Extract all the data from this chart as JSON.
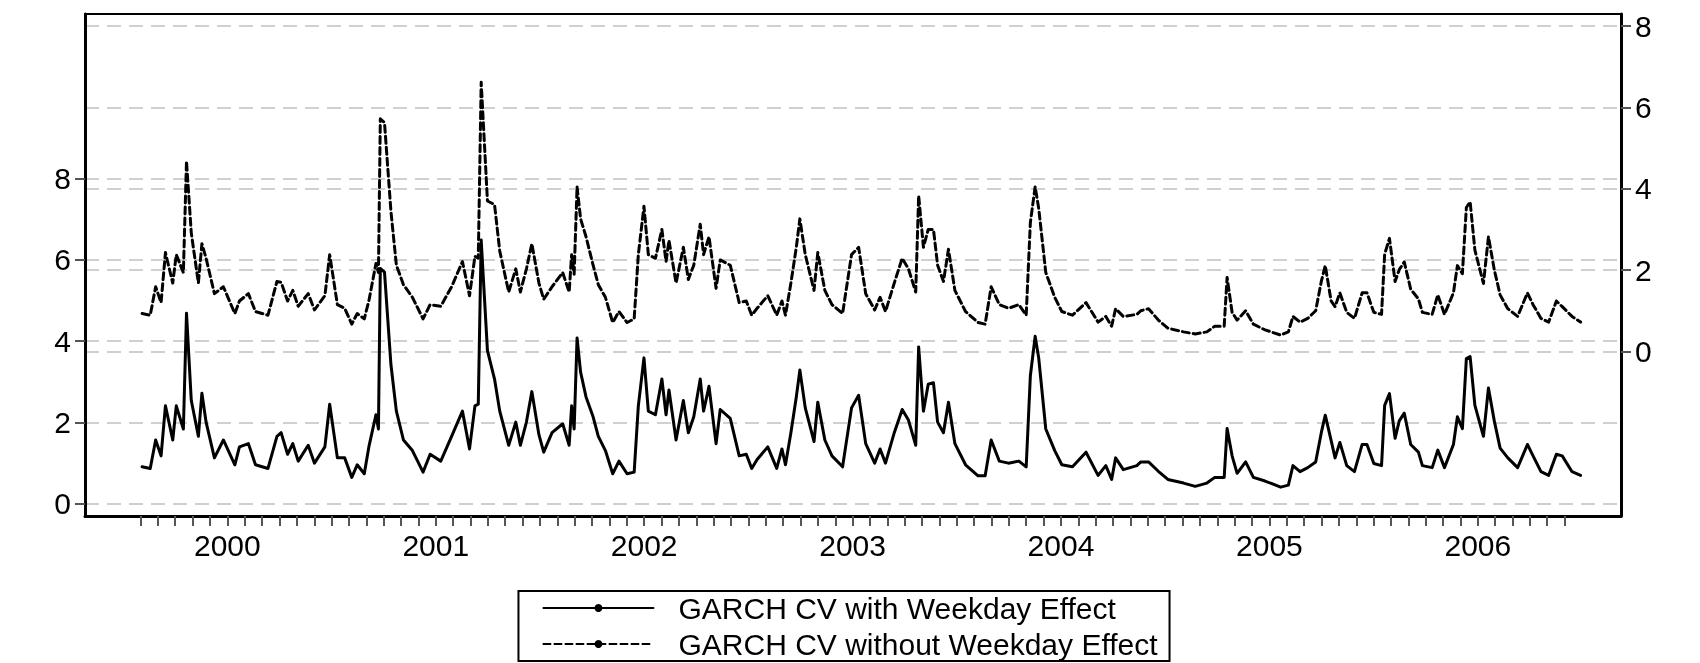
{
  "chart_data": {
    "type": "line",
    "x": [
      2000.091,
      2000.13,
      2000.156,
      2000.182,
      2000.203,
      2000.238,
      2000.255,
      2000.289,
      2000.304,
      2000.327,
      2000.361,
      2000.378,
      2000.398,
      2000.438,
      2000.481,
      2000.536,
      2000.558,
      2000.601,
      2000.635,
      2000.695,
      2000.738,
      2000.758,
      2000.789,
      2000.814,
      2000.84,
      2000.888,
      2000.918,
      2000.968,
      2000.991,
      2001.028,
      2001.063,
      2001.097,
      2001.123,
      2001.157,
      2001.179,
      2001.213,
      2001.225,
      2001.234,
      2001.254,
      2001.285,
      2001.311,
      2001.345,
      2001.388,
      2001.439,
      2001.473,
      2001.524,
      2001.576,
      2001.628,
      2001.662,
      2001.688,
      2001.704,
      2001.718,
      2001.748,
      2001.782,
      2001.807,
      2001.85,
      2001.884,
      2001.906,
      2001.935,
      2001.961,
      2001.995,
      2002.018,
      2002.058,
      2002.109,
      2002.14,
      2002.152,
      2002.164,
      2002.178,
      2002.195,
      2002.221,
      2002.255,
      2002.28,
      2002.314,
      2002.349,
      2002.379,
      2002.418,
      2002.452,
      2002.472,
      2002.499,
      2002.52,
      2002.554,
      2002.585,
      2002.605,
      2002.619,
      2002.653,
      2002.688,
      2002.712,
      2002.738,
      2002.769,
      2002.785,
      2002.811,
      2002.845,
      2002.865,
      2002.913,
      2002.956,
      2002.99,
      2003.016,
      2003.042,
      2003.093,
      2003.136,
      2003.161,
      2003.178,
      2003.204,
      2003.23,
      2003.247,
      2003.273,
      2003.315,
      2003.333,
      2003.367,
      2003.401,
      2003.452,
      2003.495,
      2003.529,
      2003.563,
      2003.606,
      2003.632,
      2003.658,
      2003.7,
      2003.738,
      2003.768,
      2003.803,
      2003.817,
      2003.84,
      2003.863,
      2003.888,
      2003.908,
      2003.936,
      2003.96,
      2003.991,
      2004.042,
      2004.102,
      2004.136,
      2004.165,
      2004.204,
      2004.248,
      2004.298,
      2004.333,
      2004.353,
      2004.376,
      2004.393,
      2004.427,
      2004.47,
      2004.504,
      2004.555,
      2004.62,
      2004.678,
      2004.715,
      2004.743,
      2004.762,
      2004.799,
      2004.864,
      2004.883,
      2004.92,
      2004.967,
      2005.013,
      2005.088,
      2005.144,
      2005.2,
      2005.238,
      2005.283,
      2005.297,
      2005.321,
      2005.345,
      2005.386,
      2005.423,
      2005.479,
      2005.554,
      2005.591,
      2005.613,
      2005.647,
      2005.684,
      2005.722,
      2005.749,
      2005.768,
      2005.796,
      2005.815,
      2005.838,
      2005.871,
      2005.908,
      2005.945,
      2005.968,
      2006.001,
      2006.038,
      2006.053,
      2006.076,
      2006.103,
      2006.123,
      2006.147,
      2006.178,
      2006.215,
      2006.234,
      2006.281,
      2006.308,
      2006.34,
      2006.383,
      2006.402,
      2006.426,
      2006.445,
      2006.463,
      2006.486,
      2006.527,
      2006.551,
      2006.579,
      2006.607,
      2006.644,
      2006.691,
      2006.738,
      2006.765,
      2006.803,
      2006.84,
      2006.877,
      2006.905,
      2006.952,
      2006.993
    ],
    "series": [
      {
        "name": "GARCH CV with Weekday Effect",
        "color": "#000000",
        "line_style": "solid",
        "values": [
          0.91,
          0.87,
          1.57,
          1.18,
          2.41,
          1.57,
          2.41,
          1.84,
          4.69,
          2.54,
          1.66,
          2.72,
          2.01,
          1.13,
          1.57,
          0.96,
          1.4,
          1.48,
          0.96,
          0.87,
          1.66,
          1.75,
          1.22,
          1.48,
          1.05,
          1.44,
          1.0,
          1.4,
          2.45,
          1.13,
          1.13,
          0.65,
          0.96,
          0.74,
          1.4,
          2.19,
          1.84,
          5.79,
          5.7,
          3.42,
          2.28,
          1.57,
          1.31,
          0.78,
          1.22,
          1.05,
          1.66,
          2.28,
          1.35,
          2.41,
          2.45,
          6.49,
          3.77,
          3.07,
          2.28,
          1.44,
          2.01,
          1.44,
          2.01,
          2.76,
          1.7,
          1.27,
          1.75,
          1.97,
          1.44,
          2.41,
          1.84,
          4.08,
          3.24,
          2.63,
          2.14,
          1.66,
          1.31,
          0.74,
          1.05,
          0.74,
          0.78,
          2.41,
          3.59,
          2.28,
          2.19,
          3.07,
          2.19,
          2.8,
          1.57,
          2.54,
          1.75,
          2.14,
          3.07,
          2.28,
          2.89,
          1.48,
          2.32,
          2.1,
          1.18,
          1.22,
          0.87,
          1.09,
          1.4,
          0.87,
          1.35,
          0.96,
          1.75,
          2.63,
          3.29,
          2.36,
          1.53,
          2.5,
          1.57,
          1.18,
          0.91,
          2.36,
          2.67,
          1.48,
          1.0,
          1.35,
          1.0,
          1.75,
          2.32,
          2.06,
          1.44,
          3.86,
          2.28,
          2.94,
          2.98,
          2.01,
          1.75,
          2.5,
          1.48,
          0.96,
          0.69,
          0.69,
          1.57,
          1.05,
          1.0,
          1.05,
          0.91,
          3.15,
          4.12,
          3.59,
          1.84,
          1.31,
          0.96,
          0.91,
          1.27,
          0.7,
          0.94,
          0.6,
          1.13,
          0.84,
          0.94,
          1.03,
          1.03,
          0.8,
          0.6,
          0.51,
          0.43,
          0.51,
          0.65,
          0.65,
          1.85,
          1.18,
          0.75,
          1.03,
          0.65,
          0.56,
          0.41,
          0.46,
          0.94,
          0.79,
          0.89,
          1.03,
          1.75,
          2.18,
          1.56,
          1.13,
          1.51,
          0.94,
          0.79,
          1.46,
          1.46,
          0.99,
          0.94,
          2.42,
          2.71,
          1.61,
          2.04,
          2.23,
          1.46,
          1.27,
          0.94,
          0.89,
          1.32,
          0.89,
          1.46,
          2.14,
          1.85,
          3.57,
          3.62,
          2.42,
          1.66,
          2.85,
          2.04,
          1.37,
          1.13,
          0.89,
          1.46,
          1.18,
          0.79,
          0.7,
          1.22,
          1.18,
          0.79,
          0.7
        ]
      },
      {
        "name": "GARCH CV without Weekday Effect",
        "color": "#000000",
        "line_style": "dashed",
        "axis": "y2",
        "values": [
          0.93,
          0.89,
          1.59,
          1.2,
          2.43,
          1.68,
          2.38,
          1.94,
          4.68,
          2.91,
          1.68,
          2.65,
          2.29,
          1.42,
          1.59,
          0.93,
          1.24,
          1.42,
          0.98,
          0.89,
          1.72,
          1.7,
          1.24,
          1.5,
          1.11,
          1.42,
          1.02,
          1.37,
          2.38,
          1.15,
          1.06,
          0.67,
          0.93,
          0.8,
          1.24,
          2.16,
          1.94,
          5.72,
          5.63,
          3.44,
          2.12,
          1.64,
          1.33,
          0.8,
          1.15,
          1.11,
          1.59,
          2.21,
          1.37,
          2.34,
          2.29,
          6.62,
          3.7,
          3.61,
          2.47,
          1.46,
          2.03,
          1.46,
          2.03,
          2.65,
          1.68,
          1.28,
          1.59,
          1.94,
          1.46,
          2.38,
          1.9,
          4.05,
          3.26,
          2.82,
          2.12,
          1.64,
          1.33,
          0.71,
          0.98,
          0.71,
          0.8,
          2.38,
          3.57,
          2.38,
          2.29,
          3.0,
          2.21,
          2.73,
          1.68,
          2.56,
          1.77,
          2.12,
          3.13,
          2.38,
          2.82,
          1.55,
          2.25,
          2.12,
          1.2,
          1.24,
          0.89,
          1.06,
          1.37,
          0.89,
          1.24,
          0.89,
          1.68,
          2.56,
          3.26,
          2.38,
          1.5,
          2.43,
          1.5,
          1.15,
          0.93,
          2.38,
          2.56,
          1.42,
          1.02,
          1.33,
          0.98,
          1.68,
          2.29,
          2.03,
          1.46,
          3.83,
          2.56,
          3.0,
          3.0,
          2.12,
          1.72,
          2.51,
          1.5,
          0.98,
          0.71,
          0.67,
          1.59,
          1.15,
          1.06,
          1.15,
          0.89,
          3.17,
          4.05,
          3.52,
          1.94,
          1.33,
          0.98,
          0.89,
          1.2,
          0.72,
          0.86,
          0.62,
          1.05,
          0.86,
          0.91,
          1.0,
          1.05,
          0.77,
          0.57,
          0.48,
          0.43,
          0.48,
          0.62,
          0.62,
          1.82,
          0.96,
          0.77,
          1.0,
          0.67,
          0.53,
          0.4,
          0.48,
          0.86,
          0.72,
          0.81,
          1.0,
          1.72,
          2.11,
          1.24,
          1.1,
          1.44,
          0.96,
          0.81,
          1.44,
          1.44,
          0.96,
          0.91,
          2.39,
          2.78,
          1.72,
          2.01,
          2.2,
          1.53,
          1.29,
          0.96,
          0.91,
          1.39,
          0.91,
          1.44,
          2.11,
          1.91,
          3.54,
          3.68,
          2.49,
          1.67,
          2.82,
          2.01,
          1.39,
          1.05,
          0.86,
          1.44,
          1.15,
          0.81,
          0.72,
          1.24,
          1.1,
          0.86,
          0.72
        ]
      }
    ],
    "xlim": [
      1999.817,
      2007.187
    ],
    "xticks": [
      {
        "value": 2000.083,
        "label": null
      },
      {
        "value": 2000.167,
        "label": null
      },
      {
        "value": 2000.25,
        "label": null
      },
      {
        "value": 2000.333,
        "label": null
      },
      {
        "value": 2000.417,
        "label": null
      },
      {
        "value": 2000.5,
        "label": "2000"
      },
      {
        "value": 2000.583,
        "label": null
      },
      {
        "value": 2000.667,
        "label": null
      },
      {
        "value": 2000.75,
        "label": null
      },
      {
        "value": 2000.833,
        "label": null
      },
      {
        "value": 2000.917,
        "label": null
      },
      {
        "value": 2001,
        "label": null
      },
      {
        "value": 2001.083,
        "label": null
      },
      {
        "value": 2001.167,
        "label": null
      },
      {
        "value": 2001.25,
        "label": null
      },
      {
        "value": 2001.333,
        "label": null
      },
      {
        "value": 2001.417,
        "label": null
      },
      {
        "value": 2001.5,
        "label": "2001"
      },
      {
        "value": 2001.583,
        "label": null
      },
      {
        "value": 2001.667,
        "label": null
      },
      {
        "value": 2001.75,
        "label": null
      },
      {
        "value": 2001.833,
        "label": null
      },
      {
        "value": 2001.917,
        "label": null
      },
      {
        "value": 2002,
        "label": null
      },
      {
        "value": 2002.083,
        "label": null
      },
      {
        "value": 2002.167,
        "label": null
      },
      {
        "value": 2002.25,
        "label": null
      },
      {
        "value": 2002.333,
        "label": null
      },
      {
        "value": 2002.417,
        "label": null
      },
      {
        "value": 2002.5,
        "label": "2002"
      },
      {
        "value": 2002.583,
        "label": null
      },
      {
        "value": 2002.667,
        "label": null
      },
      {
        "value": 2002.75,
        "label": null
      },
      {
        "value": 2002.833,
        "label": null
      },
      {
        "value": 2002.917,
        "label": null
      },
      {
        "value": 2003,
        "label": null
      },
      {
        "value": 2003.083,
        "label": null
      },
      {
        "value": 2003.167,
        "label": null
      },
      {
        "value": 2003.25,
        "label": null
      },
      {
        "value": 2003.333,
        "label": null
      },
      {
        "value": 2003.417,
        "label": null
      },
      {
        "value": 2003.5,
        "label": "2003"
      },
      {
        "value": 2003.583,
        "label": null
      },
      {
        "value": 2003.667,
        "label": null
      },
      {
        "value": 2003.75,
        "label": null
      },
      {
        "value": 2003.833,
        "label": null
      },
      {
        "value": 2003.917,
        "label": null
      },
      {
        "value": 2004,
        "label": null
      },
      {
        "value": 2004.083,
        "label": null
      },
      {
        "value": 2004.167,
        "label": null
      },
      {
        "value": 2004.25,
        "label": null
      },
      {
        "value": 2004.333,
        "label": null
      },
      {
        "value": 2004.417,
        "label": null
      },
      {
        "value": 2004.5,
        "label": "2004"
      },
      {
        "value": 2004.583,
        "label": null
      },
      {
        "value": 2004.667,
        "label": null
      },
      {
        "value": 2004.75,
        "label": null
      },
      {
        "value": 2004.833,
        "label": null
      },
      {
        "value": 2004.917,
        "label": null
      },
      {
        "value": 2005,
        "label": null
      },
      {
        "value": 2005.083,
        "label": null
      },
      {
        "value": 2005.167,
        "label": null
      },
      {
        "value": 2005.25,
        "label": null
      },
      {
        "value": 2005.333,
        "label": null
      },
      {
        "value": 2005.417,
        "label": null
      },
      {
        "value": 2005.5,
        "label": "2005"
      },
      {
        "value": 2005.583,
        "label": null
      },
      {
        "value": 2005.667,
        "label": null
      },
      {
        "value": 2005.75,
        "label": null
      },
      {
        "value": 2005.833,
        "label": null
      },
      {
        "value": 2005.917,
        "label": null
      },
      {
        "value": 2006,
        "label": null
      },
      {
        "value": 2006.083,
        "label": null
      },
      {
        "value": 2006.167,
        "label": null
      },
      {
        "value": 2006.25,
        "label": null
      },
      {
        "value": 2006.333,
        "label": null
      },
      {
        "value": 2006.417,
        "label": null
      },
      {
        "value": 2006.5,
        "label": "2006"
      },
      {
        "value": 2006.583,
        "label": null
      },
      {
        "value": 2006.667,
        "label": null
      },
      {
        "value": 2006.75,
        "label": null
      },
      {
        "value": 2006.833,
        "label": null
      },
      {
        "value": 2006.917,
        "label": null
      }
    ],
    "ylim": [
      -0.3,
      12.05
    ],
    "yticks": [
      0,
      2,
      4,
      6,
      8
    ],
    "y2lim": [
      -4.05,
      8.3
    ],
    "y2ticks": [
      0,
      2,
      4,
      6,
      8
    ],
    "grid": "y",
    "legend": "bottom",
    "marker": "none"
  }
}
